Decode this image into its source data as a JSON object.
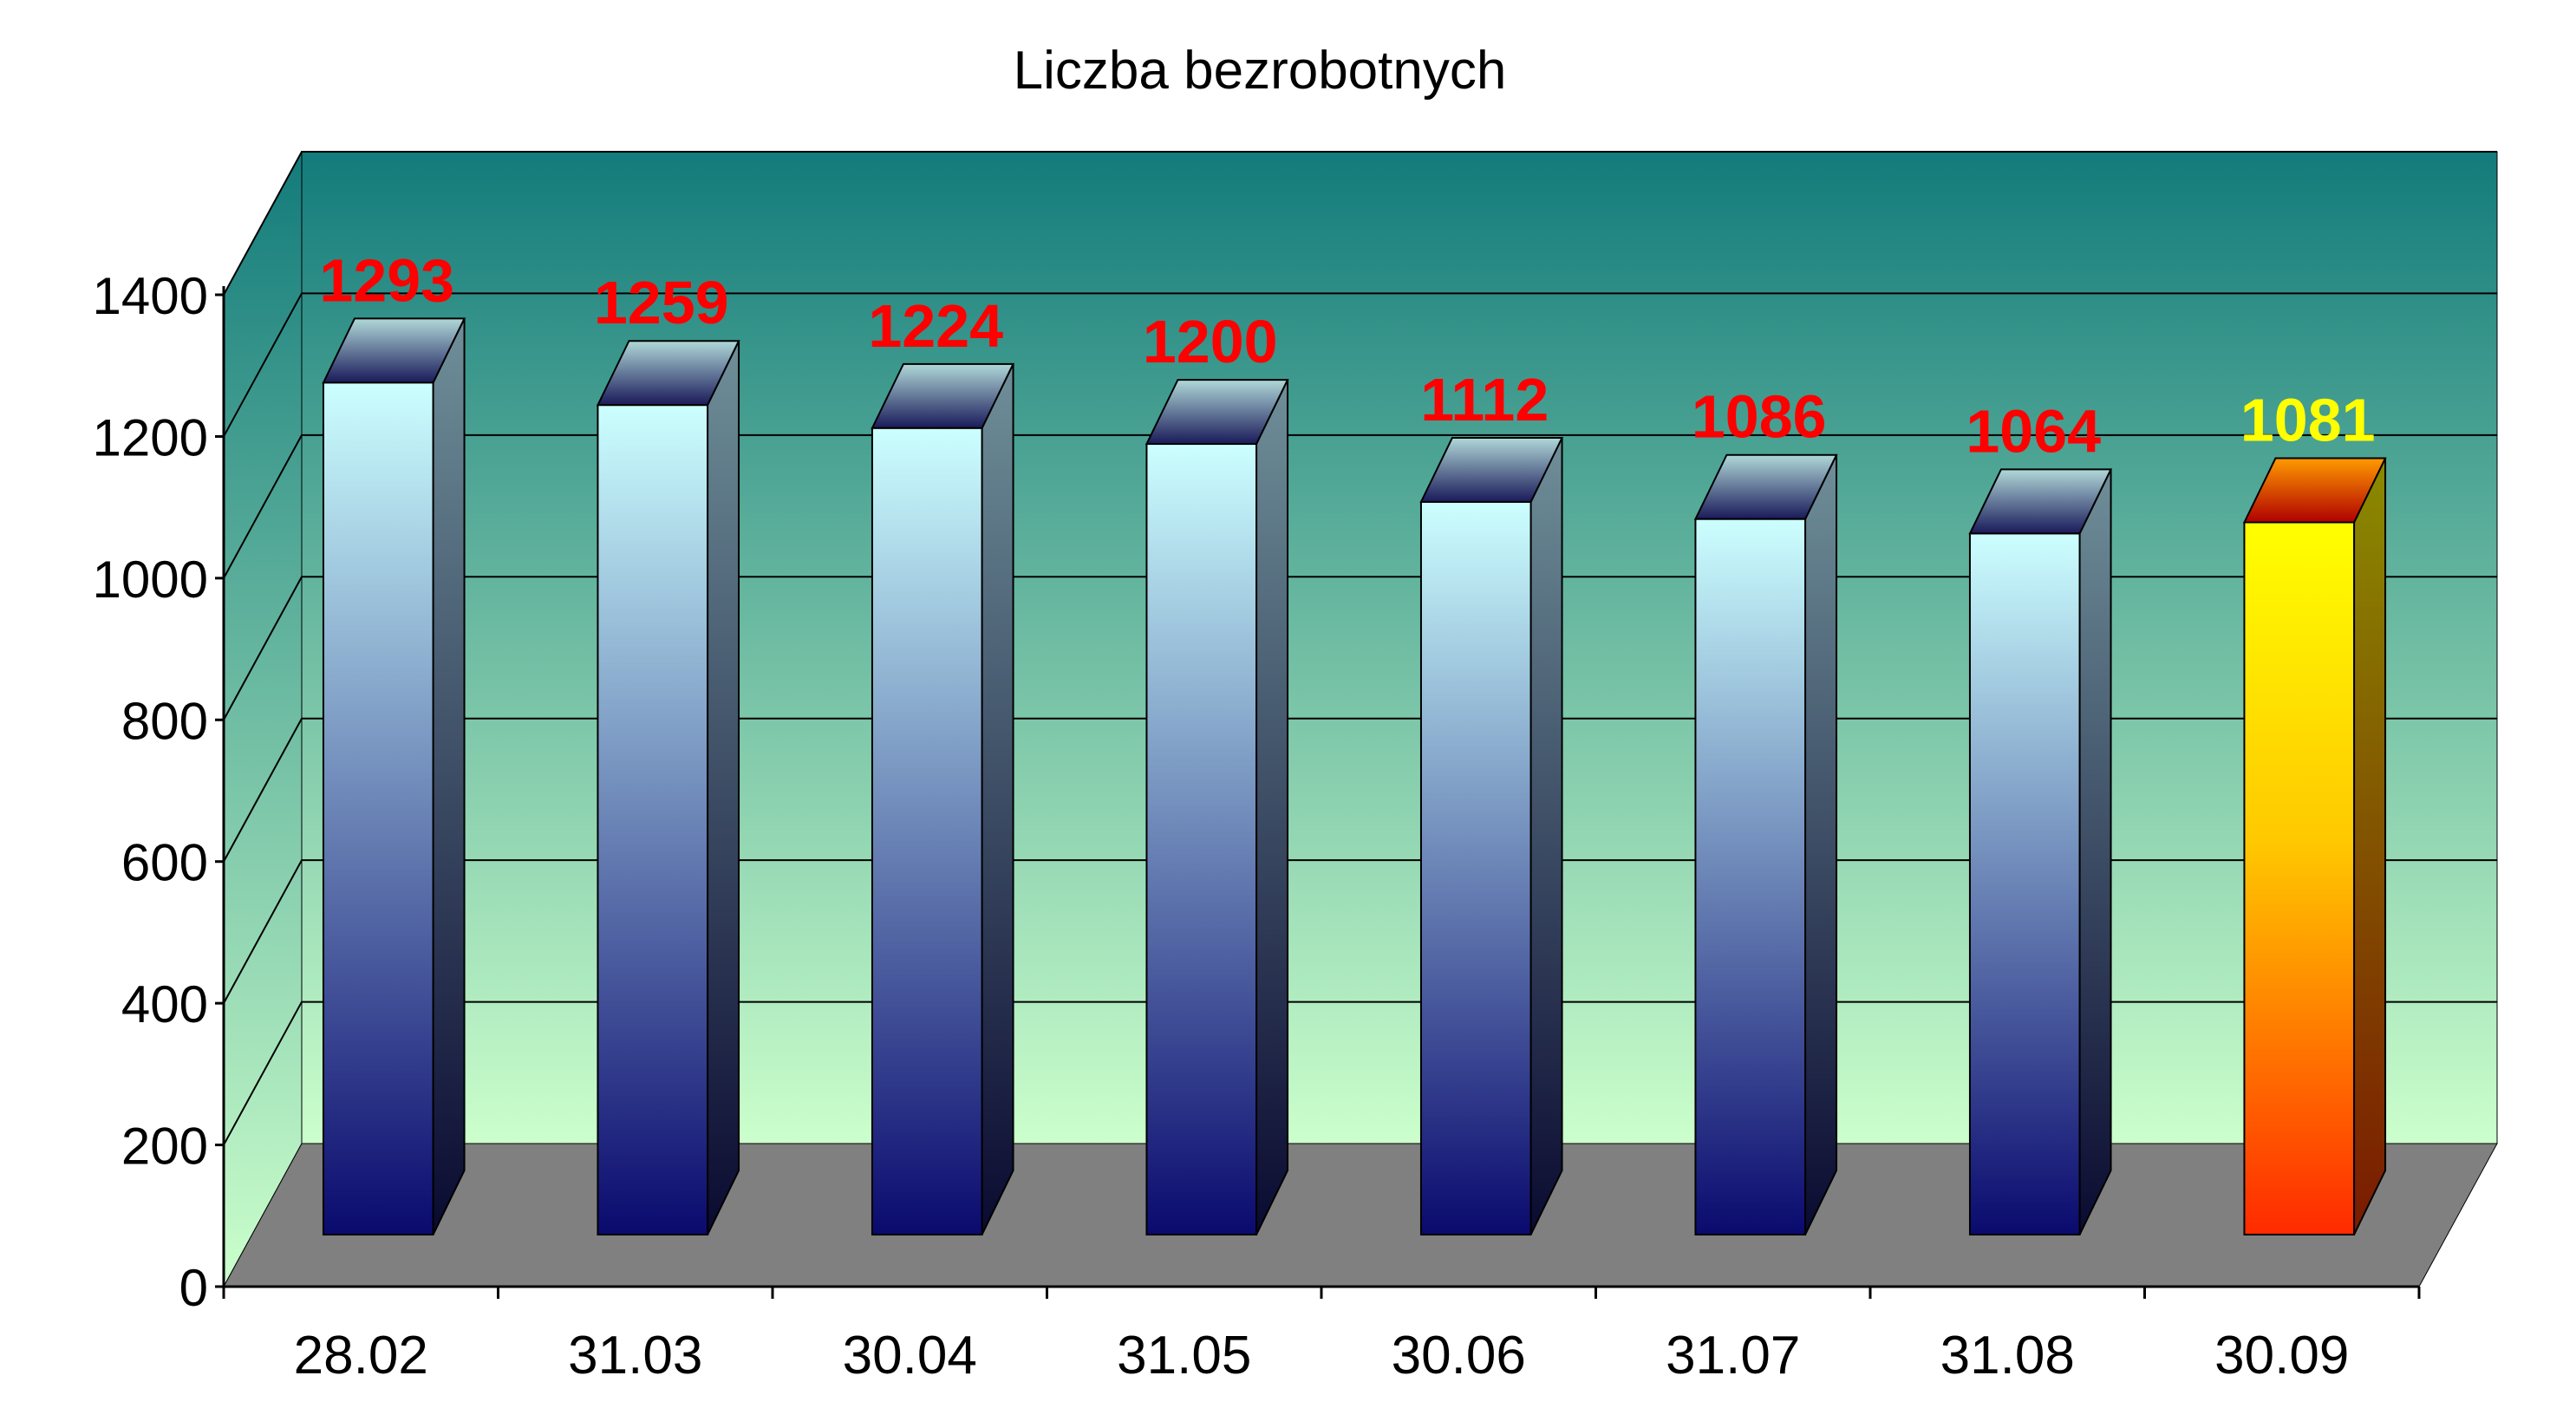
{
  "chart_data": {
    "type": "bar",
    "title": "Liczba bezrobotnych",
    "categories": [
      "28.02",
      "31.03",
      "30.04",
      "31.05",
      "30.06",
      "31.07",
      "31.08",
      "30.09"
    ],
    "values": [
      1293,
      1259,
      1224,
      1200,
      1112,
      1086,
      1064,
      1081
    ],
    "ylim": [
      0,
      1400
    ],
    "yticks": [
      "0",
      "200",
      "400",
      "600",
      "800",
      "1000",
      "1200",
      "1400"
    ],
    "grid": true,
    "legend": "none",
    "three_d": true,
    "colors": {
      "bar_top": "#ccffff",
      "bar_bottom": "#0a0a6e",
      "highlight_bar_top": "#ffff00",
      "highlight_bar_bottom": "#ff2a00",
      "label_default": "#ff0000",
      "label_highlight": "#ffff00",
      "wall_top": "#137b7b",
      "wall_bottom": "#ccffcc",
      "floor": "#808080"
    },
    "highlight_index": 7
  }
}
